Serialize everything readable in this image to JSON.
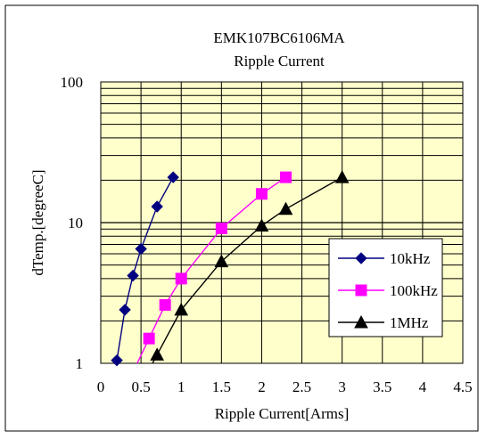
{
  "chart_data": {
    "type": "line",
    "title": "EMK107BC6106MA",
    "subtitle": "Ripple Current",
    "xlabel": "Ripple Current[Arms]",
    "ylabel": "dTemp.[degreeC]",
    "xlim": [
      0,
      4.5
    ],
    "ylim": [
      1,
      100
    ],
    "yscale": "log",
    "x_ticks": [
      "0",
      "0.5",
      "1",
      "1.5",
      "2",
      "2.5",
      "3",
      "3.5",
      "4",
      "4.5"
    ],
    "y_ticks": [
      "1",
      "10",
      "100"
    ],
    "grid": true,
    "legend_position": "bottom-right",
    "plot_background": "#ffffcc",
    "series": [
      {
        "name": "10kHz",
        "color": "#000080",
        "marker": "diamond",
        "x": [
          0.2,
          0.3,
          0.4,
          0.5,
          0.7,
          0.9
        ],
        "y": [
          1.05,
          2.4,
          4.2,
          6.5,
          13,
          21
        ]
      },
      {
        "name": "100kHz",
        "color": "#ff00ff",
        "marker": "square",
        "x": [
          0.6,
          0.8,
          1.0,
          1.5,
          2.0,
          2.3
        ],
        "y": [
          1.5,
          2.6,
          4.0,
          9.1,
          16,
          21
        ]
      },
      {
        "name": "1MHz",
        "color": "#000000",
        "marker": "triangle",
        "x": [
          0.7,
          1.0,
          1.5,
          2.0,
          2.3,
          3.0
        ],
        "y": [
          1.15,
          2.4,
          5.3,
          9.5,
          12.5,
          21
        ]
      }
    ]
  }
}
